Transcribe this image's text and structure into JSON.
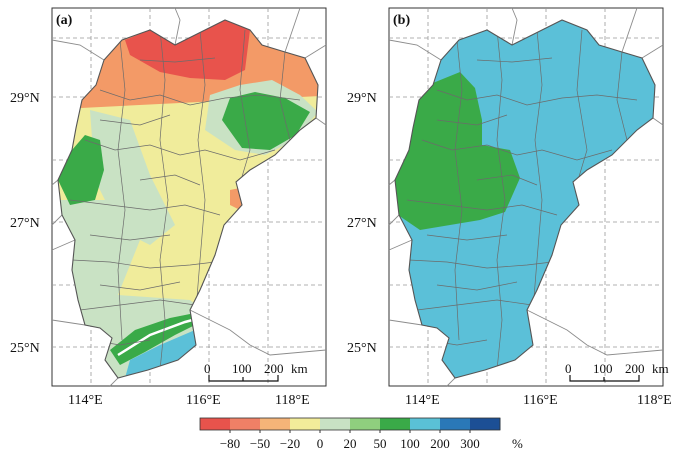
{
  "panels": [
    {
      "label": "(a)",
      "lat_labels": [
        "29°N",
        "27°N",
        "25°N"
      ],
      "lon_labels": [
        "114°E",
        "116°E",
        "118°E"
      ],
      "scale_bar": {
        "ticks": [
          "0",
          "100",
          "200"
        ],
        "unit": "km"
      }
    },
    {
      "label": "(b)",
      "lat_labels": [
        "29°N",
        "27°N",
        "25°N"
      ],
      "lon_labels": [
        "114°E",
        "116°E",
        "118°E"
      ],
      "scale_bar": {
        "ticks": [
          "0",
          "100",
          "200"
        ],
        "unit": "km"
      }
    }
  ],
  "colorbar": {
    "labels": [
      "−80",
      "−50",
      "−20",
      "0",
      "20",
      "50",
      "100",
      "200",
      "300"
    ],
    "unit": "%",
    "colors": [
      "#e8534c",
      "#f08066",
      "#f5b478",
      "#f2ec9a",
      "#c8e2c4",
      "#8fcf7e",
      "#3aaa48",
      "#5ac1d6",
      "#2a78b8",
      "#1c4f95"
    ]
  },
  "colors": {
    "province_fill": "#5bc0d8",
    "green": "#3aaa48",
    "light_green": "#c9e2c4",
    "yellow": "#f0ec9b",
    "orange": "#f39a67",
    "red": "#e8534c",
    "border": "#666666",
    "grid": "#999999"
  }
}
